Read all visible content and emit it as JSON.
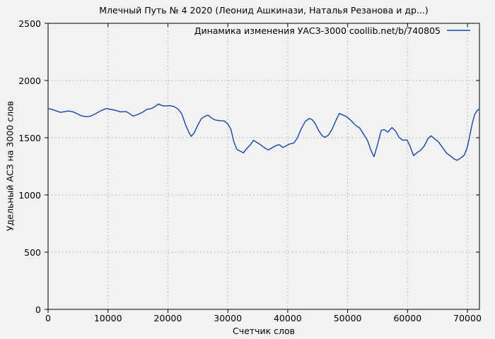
{
  "colors": {
    "background": "#f2f2f2",
    "grid": "#a9a9a9",
    "border": "#000000",
    "text": "#000000",
    "line": "#1646a8"
  },
  "chart_data": {
    "type": "line",
    "title": "Млечный Путь № 4 2020 (Леонид Ашкинази, Наталья Резанова и др...)",
    "xlabel": "Счетчик слов",
    "ylabel": "Удельный АСЗ на 3000 слов",
    "xlim": [
      0,
      72000
    ],
    "ylim": [
      0,
      2500
    ],
    "xticks": [
      0,
      10000,
      20000,
      30000,
      40000,
      50000,
      60000,
      70000
    ],
    "yticks": [
      0,
      500,
      1000,
      1500,
      2000,
      2500
    ],
    "grid": true,
    "grid_style": "dotted",
    "legend_position": "top-right-inside",
    "series": [
      {
        "name": "Динамика изменения УАСЗ-3000 coollib.net/b/740805",
        "color": "#1646a8",
        "points": [
          [
            0,
            1755
          ],
          [
            600,
            1748
          ],
          [
            1300,
            1736
          ],
          [
            2000,
            1722
          ],
          [
            2700,
            1727
          ],
          [
            3300,
            1734
          ],
          [
            4100,
            1727
          ],
          [
            4800,
            1711
          ],
          [
            5600,
            1691
          ],
          [
            6400,
            1684
          ],
          [
            7100,
            1689
          ],
          [
            7900,
            1709
          ],
          [
            8800,
            1736
          ],
          [
            9700,
            1755
          ],
          [
            10500,
            1747
          ],
          [
            11300,
            1739
          ],
          [
            12100,
            1726
          ],
          [
            13000,
            1729
          ],
          [
            13600,
            1711
          ],
          [
            14200,
            1689
          ],
          [
            15000,
            1704
          ],
          [
            15800,
            1724
          ],
          [
            16500,
            1748
          ],
          [
            17200,
            1754
          ],
          [
            17900,
            1774
          ],
          [
            18400,
            1795
          ],
          [
            19000,
            1781
          ],
          [
            19600,
            1777
          ],
          [
            20300,
            1780
          ],
          [
            21000,
            1773
          ],
          [
            21700,
            1751
          ],
          [
            22300,
            1710
          ],
          [
            23000,
            1606
          ],
          [
            23500,
            1546
          ],
          [
            23900,
            1512
          ],
          [
            24400,
            1544
          ],
          [
            25000,
            1612
          ],
          [
            25600,
            1668
          ],
          [
            26100,
            1684
          ],
          [
            26700,
            1698
          ],
          [
            27300,
            1671
          ],
          [
            27900,
            1655
          ],
          [
            28700,
            1649
          ],
          [
            29400,
            1647
          ],
          [
            30000,
            1620
          ],
          [
            30500,
            1576
          ],
          [
            31000,
            1468
          ],
          [
            31500,
            1398
          ],
          [
            32000,
            1384
          ],
          [
            32600,
            1368
          ],
          [
            33100,
            1402
          ],
          [
            33700,
            1434
          ],
          [
            34300,
            1477
          ],
          [
            34900,
            1457
          ],
          [
            35500,
            1437
          ],
          [
            36200,
            1409
          ],
          [
            36800,
            1394
          ],
          [
            37400,
            1413
          ],
          [
            38100,
            1433
          ],
          [
            38600,
            1439
          ],
          [
            39200,
            1414
          ],
          [
            39800,
            1431
          ],
          [
            40300,
            1445
          ],
          [
            41000,
            1453
          ],
          [
            41600,
            1497
          ],
          [
            42200,
            1572
          ],
          [
            42900,
            1641
          ],
          [
            43600,
            1669
          ],
          [
            44100,
            1657
          ],
          [
            44600,
            1622
          ],
          [
            45100,
            1568
          ],
          [
            45700,
            1519
          ],
          [
            46200,
            1503
          ],
          [
            46800,
            1523
          ],
          [
            47400,
            1574
          ],
          [
            48000,
            1647
          ],
          [
            48600,
            1712
          ],
          [
            49200,
            1699
          ],
          [
            49900,
            1680
          ],
          [
            50600,
            1649
          ],
          [
            51300,
            1609
          ],
          [
            52000,
            1586
          ],
          [
            52700,
            1528
          ],
          [
            53300,
            1478
          ],
          [
            53900,
            1388
          ],
          [
            54400,
            1334
          ],
          [
            55000,
            1442
          ],
          [
            55600,
            1564
          ],
          [
            56100,
            1571
          ],
          [
            56700,
            1549
          ],
          [
            57400,
            1589
          ],
          [
            58000,
            1558
          ],
          [
            58600,
            1502
          ],
          [
            59200,
            1477
          ],
          [
            59900,
            1481
          ],
          [
            60400,
            1428
          ],
          [
            61000,
            1344
          ],
          [
            61600,
            1370
          ],
          [
            62200,
            1391
          ],
          [
            62800,
            1429
          ],
          [
            63400,
            1491
          ],
          [
            63900,
            1517
          ],
          [
            64500,
            1491
          ],
          [
            65100,
            1468
          ],
          [
            65800,
            1417
          ],
          [
            66500,
            1366
          ],
          [
            67200,
            1339
          ],
          [
            67800,
            1313
          ],
          [
            68300,
            1303
          ],
          [
            68900,
            1323
          ],
          [
            69500,
            1350
          ],
          [
            70000,
            1422
          ],
          [
            70400,
            1521
          ],
          [
            70800,
            1624
          ],
          [
            71200,
            1701
          ],
          [
            71600,
            1737
          ],
          [
            72000,
            1752
          ]
        ]
      }
    ]
  }
}
